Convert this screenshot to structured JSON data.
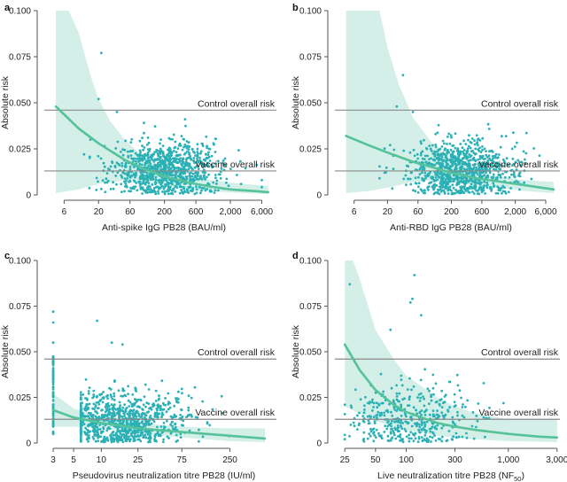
{
  "chart_data": [
    {
      "panel": "a",
      "type": "scatter",
      "xlabel": "Anti-spike IgG PB28 (BAU/ml)",
      "ylabel": "Absolute risk",
      "xscale": "log",
      "xlim": [
        3,
        10000
      ],
      "ylim": [
        0,
        0.1
      ],
      "xticks": [
        6,
        20,
        60,
        200,
        600,
        2000,
        6000
      ],
      "xtick_labels": [
        "6",
        "20",
        "60",
        "200",
        "600",
        "2,000",
        "6,000"
      ],
      "yticks": [
        0,
        0.025,
        0.05,
        0.075,
        0.1
      ],
      "ytick_labels": [
        "0",
        "0.025",
        "0.050",
        "0.075",
        "0.100"
      ],
      "reference_lines": [
        {
          "label": "Control overall risk",
          "y": 0.046
        },
        {
          "label": "Vaccine overall risk",
          "y": 0.013
        }
      ],
      "fit": {
        "x": [
          4.5,
          10,
          20,
          50,
          100,
          200,
          500,
          1000,
          2000,
          5000,
          7500
        ],
        "y": [
          0.048,
          0.036,
          0.028,
          0.019,
          0.014,
          0.01,
          0.0065,
          0.0045,
          0.003,
          0.002,
          0.0015
        ]
      },
      "ci_upper": {
        "x": [
          4.5,
          7,
          10,
          15,
          20,
          30,
          50,
          100,
          200,
          500,
          1000,
          3000,
          7500
        ],
        "y": [
          0.1,
          0.1,
          0.088,
          0.065,
          0.052,
          0.04,
          0.03,
          0.02,
          0.015,
          0.01,
          0.008,
          0.006,
          0.005
        ]
      },
      "ci_lower": {
        "x": [
          4.5,
          10,
          20,
          50,
          100,
          200,
          500,
          1000,
          3000,
          7500
        ],
        "y": [
          0.001,
          0.003,
          0.006,
          0.008,
          0.007,
          0.005,
          0.003,
          0.002,
          0.001,
          0.0005
        ]
      },
      "points": {
        "n": 950,
        "seed": 11,
        "xlogmean": 2.35,
        "xlogsd": 0.42,
        "xmin": 8,
        "xmax": 6000,
        "ymean": 0.013,
        "ysd": 0.008,
        "yfloor": 0.0005,
        "outliers": [
          [
            22,
            0.077
          ],
          [
            20,
            0.052
          ],
          [
            38,
            0.045
          ],
          [
            15,
            0.03
          ],
          [
            12,
            0.022
          ]
        ]
      }
    },
    {
      "panel": "b",
      "type": "scatter",
      "xlabel": "Anti-RBD IgG PB28 (BAU/ml)",
      "ylabel": "Absolute risk",
      "xscale": "log",
      "xlim": [
        3,
        10000
      ],
      "ylim": [
        0,
        0.1
      ],
      "xticks": [
        6,
        20,
        60,
        200,
        600,
        2000,
        6000
      ],
      "xtick_labels": [
        "6",
        "20",
        "60",
        "200",
        "600",
        "2,000",
        "6,000"
      ],
      "yticks": [
        0,
        0.025,
        0.05,
        0.075,
        0.1
      ],
      "ytick_labels": [
        "0",
        "0.025",
        "0.050",
        "0.075",
        "0.100"
      ],
      "reference_lines": [
        {
          "label": "Control overall risk",
          "y": 0.046
        },
        {
          "label": "Vaccine overall risk",
          "y": 0.013
        }
      ],
      "fit": {
        "x": [
          4.5,
          10,
          20,
          50,
          100,
          200,
          500,
          1000,
          2000,
          5000,
          8000
        ],
        "y": [
          0.032,
          0.027,
          0.023,
          0.018,
          0.015,
          0.012,
          0.009,
          0.0075,
          0.006,
          0.004,
          0.003
        ]
      },
      "ci_upper": {
        "x": [
          4.5,
          7,
          10,
          15,
          20,
          30,
          50,
          100,
          200,
          500,
          1000,
          3000,
          8000
        ],
        "y": [
          0.1,
          0.1,
          0.1,
          0.1,
          0.08,
          0.06,
          0.042,
          0.028,
          0.02,
          0.013,
          0.01,
          0.008,
          0.007
        ]
      },
      "ci_lower": {
        "x": [
          4.5,
          10,
          20,
          50,
          100,
          200,
          500,
          1000,
          3000,
          8000
        ],
        "y": [
          0.001,
          0.002,
          0.004,
          0.007,
          0.008,
          0.007,
          0.005,
          0.004,
          0.002,
          0.001
        ]
      },
      "points": {
        "n": 950,
        "seed": 23,
        "xlogmean": 2.45,
        "xlogsd": 0.4,
        "xmin": 15,
        "xmax": 6000,
        "ymean": 0.013,
        "ysd": 0.008,
        "yfloor": 0.0005,
        "outliers": [
          [
            35,
            0.065
          ],
          [
            28,
            0.048
          ],
          [
            50,
            0.045
          ],
          [
            22,
            0.027
          ],
          [
            18,
            0.012
          ]
        ]
      }
    },
    {
      "panel": "c",
      "type": "scatter",
      "xlabel": "Pseudovirus neutralization titre PB28 (IU/ml)",
      "ylabel": "Absolute risk",
      "xscale": "log",
      "xlim": [
        2.4,
        800
      ],
      "ylim": [
        0,
        0.1
      ],
      "xticks": [
        3,
        5,
        10,
        25,
        75,
        250
      ],
      "xtick_labels": [
        "3",
        "5",
        "10",
        "25",
        "75",
        "250"
      ],
      "yticks": [
        0,
        0.025,
        0.05,
        0.075,
        0.1
      ],
      "ytick_labels": [
        "0",
        "0.025",
        "0.050",
        "0.075",
        "0.100"
      ],
      "reference_lines": [
        {
          "label": "Control overall risk",
          "y": 0.046
        },
        {
          "label": "Vaccine overall risk",
          "y": 0.013
        }
      ],
      "fit": {
        "x": [
          3,
          5,
          10,
          25,
          75,
          250,
          600
        ],
        "y": [
          0.018,
          0.014,
          0.011,
          0.008,
          0.006,
          0.004,
          0.0025
        ]
      },
      "ci_upper": {
        "x": [
          3,
          5,
          10,
          25,
          75,
          250,
          600
        ],
        "y": [
          0.027,
          0.019,
          0.014,
          0.011,
          0.009,
          0.008,
          0.008
        ]
      },
      "ci_lower": {
        "x": [
          3,
          5,
          10,
          25,
          75,
          250,
          600
        ],
        "y": [
          0.009,
          0.009,
          0.008,
          0.005,
          0.003,
          0.001,
          0.0005
        ]
      },
      "points": {
        "n": 900,
        "seed": 37,
        "xlogmean": 1.25,
        "xlogsd": 0.35,
        "xmin": 6,
        "xmax": 400,
        "ymean": 0.012,
        "ysd": 0.008,
        "yfloor": 0.0005,
        "cluster_x": 3,
        "cluster_n": 90,
        "outliers": [
          [
            3,
            0.072
          ],
          [
            3,
            0.066
          ],
          [
            3,
            0.055
          ],
          [
            9,
            0.067
          ],
          [
            13,
            0.055
          ],
          [
            17,
            0.054
          ]
        ]
      }
    },
    {
      "panel": "d",
      "type": "scatter",
      "xlabel": "Live neutralization titre PB28 (NF",
      "xlabel_subscript": "50",
      "xlabel_suffix": ")",
      "ylabel": "Absolute risk",
      "xscale": "log",
      "xlim": [
        20,
        3200
      ],
      "ylim": [
        0,
        0.1
      ],
      "xticks": [
        25,
        50,
        100,
        300,
        1000,
        3000
      ],
      "xtick_labels": [
        "25",
        "50",
        "100",
        "300",
        "1,000",
        "3,000"
      ],
      "yticks": [
        0,
        0.025,
        0.05,
        0.075,
        0.1
      ],
      "ytick_labels": [
        "0",
        "0.025",
        "0.050",
        "0.075",
        "0.100"
      ],
      "reference_lines": [
        {
          "label": "Control overall risk",
          "y": 0.046
        },
        {
          "label": "Vaccine overall risk",
          "y": 0.013
        }
      ],
      "fit": {
        "x": [
          25,
          35,
          50,
          75,
          100,
          200,
          300,
          500,
          1000,
          2000,
          3000
        ],
        "y": [
          0.054,
          0.04,
          0.029,
          0.021,
          0.017,
          0.011,
          0.009,
          0.007,
          0.005,
          0.0035,
          0.003
        ]
      },
      "ci_upper": {
        "x": [
          25,
          30,
          35,
          50,
          75,
          100,
          200,
          300,
          500,
          1000,
          2000,
          3000
        ],
        "y": [
          0.1,
          0.1,
          0.09,
          0.062,
          0.046,
          0.037,
          0.025,
          0.02,
          0.016,
          0.013,
          0.013,
          0.013
        ]
      },
      "ci_lower": {
        "x": [
          25,
          35,
          50,
          75,
          100,
          200,
          300,
          500,
          1000,
          2000,
          3000
        ],
        "y": [
          0.02,
          0.016,
          0.012,
          0.009,
          0.007,
          0.004,
          0.003,
          0.002,
          0.001,
          0.0008,
          0.0005
        ]
      },
      "points": {
        "n": 420,
        "seed": 53,
        "xlogmean": 2.05,
        "xlogsd": 0.33,
        "xmin": 25,
        "xmax": 3000,
        "ymean": 0.013,
        "ysd": 0.01,
        "yfloor": 0.0005,
        "outliers": [
          [
            28,
            0.087
          ],
          [
            120,
            0.092
          ],
          [
            115,
            0.079
          ],
          [
            110,
            0.077
          ],
          [
            140,
            0.07
          ],
          [
            70,
            0.062
          ]
        ]
      }
    }
  ]
}
